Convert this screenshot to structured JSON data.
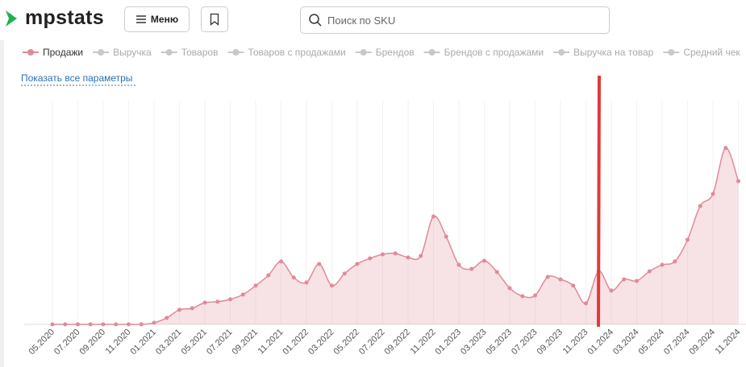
{
  "header": {
    "logo": "mpstats",
    "menu_button": "Меню",
    "search_placeholder": "Поиск по SKU"
  },
  "show_all_link": "Показать все параметры",
  "chart_data": {
    "type": "area",
    "categories": [
      "05.2020",
      null,
      "07.2020",
      null,
      "09.2020",
      null,
      "11.2020",
      null,
      "01.2021",
      null,
      "03.2021",
      null,
      "05.2021",
      null,
      "07.2021",
      null,
      "09.2021",
      null,
      "11.2021",
      null,
      "01.2022",
      null,
      "03.2022",
      null,
      "05.2022",
      null,
      "07.2022",
      null,
      "09.2022",
      null,
      "11.2022",
      null,
      "01.2023",
      null,
      "03.2023",
      null,
      "05.2023",
      null,
      "07.2023",
      null,
      "09.2023",
      null,
      "11.2023",
      null,
      "01.2024",
      null,
      "03.2024",
      null,
      "05.2024",
      null,
      "07.2024",
      null,
      "09.2024",
      null,
      "11.2024"
    ],
    "series": [
      {
        "name": "Продажи",
        "color": "#e08a98",
        "values": [
          0,
          0,
          0,
          0,
          0,
          0,
          0,
          0,
          0.7,
          2.9,
          6.5,
          7.2,
          9.7,
          10.1,
          11.2,
          13.3,
          17.3,
          21.9,
          28.1,
          20.9,
          18.7,
          27.0,
          17.3,
          22.7,
          27.0,
          29.5,
          31.3,
          31.7,
          29.9,
          30.6,
          48.2,
          39.2,
          26.6,
          24.8,
          28.4,
          23.4,
          16.2,
          12.6,
          12.9,
          21.2,
          20.1,
          17.3,
          9.4,
          23.7,
          15.1,
          20.1,
          19.4,
          23.7,
          26.6,
          28.1,
          37.8,
          52.9,
          58.3,
          78.8,
          64.0
        ]
      }
    ],
    "inactive_series": [
      "Выручка",
      "Товаров",
      "Товаров с продажами",
      "Брендов",
      "Брендов с продажами",
      "Выручка на товар",
      "Средний чек"
    ],
    "ylim": [
      0,
      100
    ]
  }
}
